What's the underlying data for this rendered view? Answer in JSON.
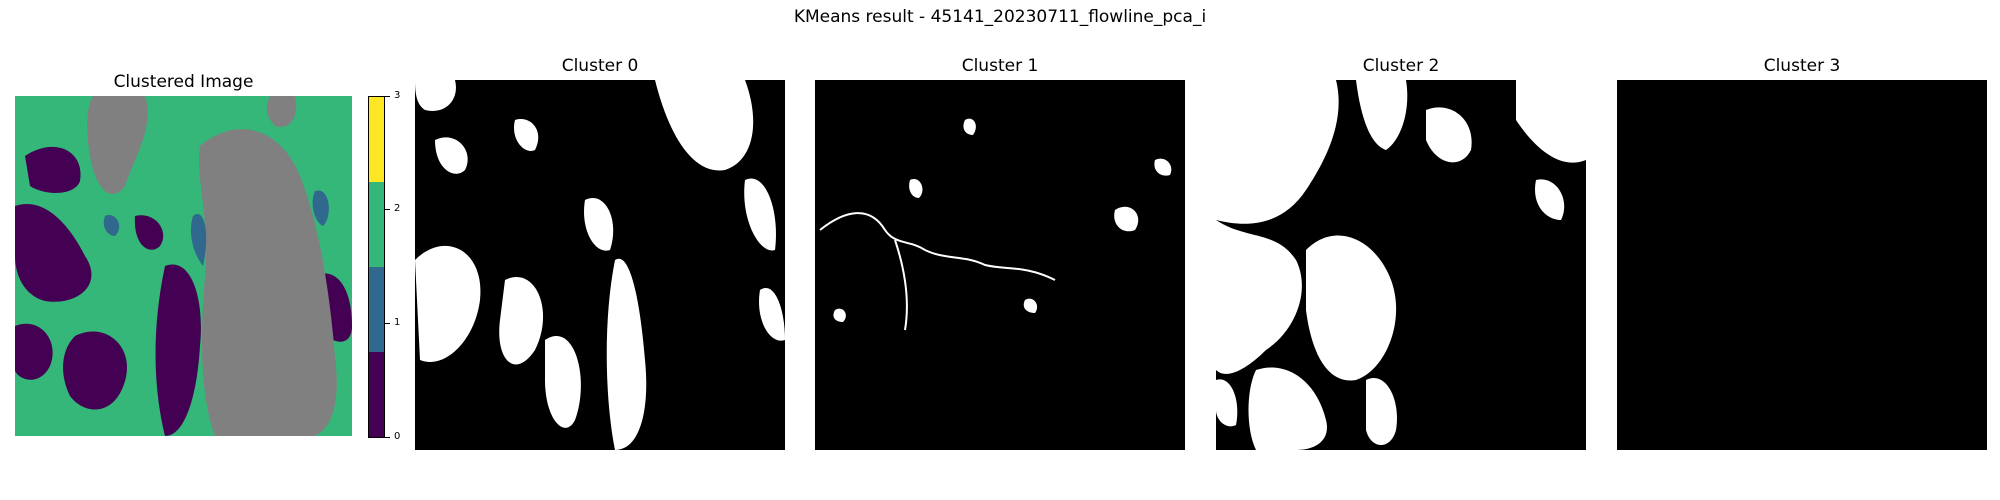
{
  "figure": {
    "suptitle": "KMeans result - 45141_20230711_flowline_pca_i"
  },
  "clustered_panel": {
    "title": "Clustered Image",
    "colorbar": {
      "ticks": [
        "0",
        "1",
        "2",
        "3"
      ],
      "colors": [
        "#440154",
        "#31688e",
        "#35b779",
        "#fde725"
      ]
    },
    "region_colors": {
      "grey": "#808080",
      "teal": "#35b779",
      "purple": "#440154",
      "blue": "#31688e"
    }
  },
  "cluster_panels": [
    {
      "title": "Cluster 0"
    },
    {
      "title": "Cluster 1"
    },
    {
      "title": "Cluster 2"
    },
    {
      "title": "Cluster 3"
    }
  ]
}
